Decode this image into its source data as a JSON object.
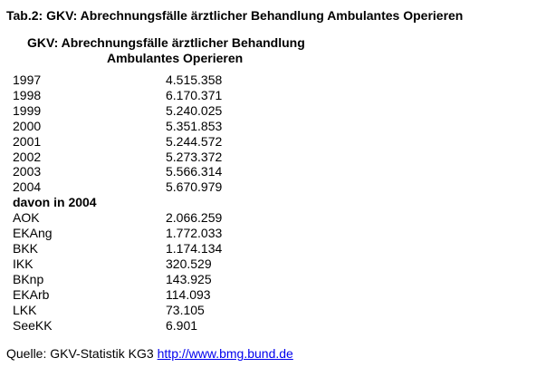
{
  "document": {
    "title": "Tab.2: GKV: Abrechnungsfälle ärztlicher Behandlung Ambulantes Operieren"
  },
  "table": {
    "header_line1": "GKV: Abrechnungsfälle ärztlicher Behandlung",
    "header_line2": "Ambulantes Operieren",
    "year_rows": [
      {
        "label": "1997",
        "value": "4.515.358"
      },
      {
        "label": "1998",
        "value": "6.170.371"
      },
      {
        "label": "1999",
        "value": "5.240.025"
      },
      {
        "label": "2000",
        "value": "5.351.853"
      },
      {
        "label": "2001",
        "value": "5.244.572"
      },
      {
        "label": "2002",
        "value": "5.273.372"
      },
      {
        "label": "2003",
        "value": "5.566.314"
      },
      {
        "label": "2004",
        "value": "5.670.979"
      }
    ],
    "section_label": "davon in 2004",
    "breakdown_rows": [
      {
        "label": "AOK",
        "value": "2.066.259"
      },
      {
        "label": "EKAng",
        "value": "1.772.033"
      },
      {
        "label": "BKK",
        "value": "1.174.134"
      },
      {
        "label": "IKK",
        "value": "320.529"
      },
      {
        "label": "BKnp",
        "value": "143.925"
      },
      {
        "label": "EKArb",
        "value": "114.093"
      },
      {
        "label": "LKK",
        "value": "73.105"
      },
      {
        "label": "SeeKK",
        "value": "6.901"
      }
    ]
  },
  "footer": {
    "source_label": "Quelle: GKV-Statistik KG3",
    "source_link": "http://www.bmg.bund.de"
  },
  "colors": {
    "text": "#000000",
    "link": "#0000ee",
    "background": "#ffffff"
  }
}
